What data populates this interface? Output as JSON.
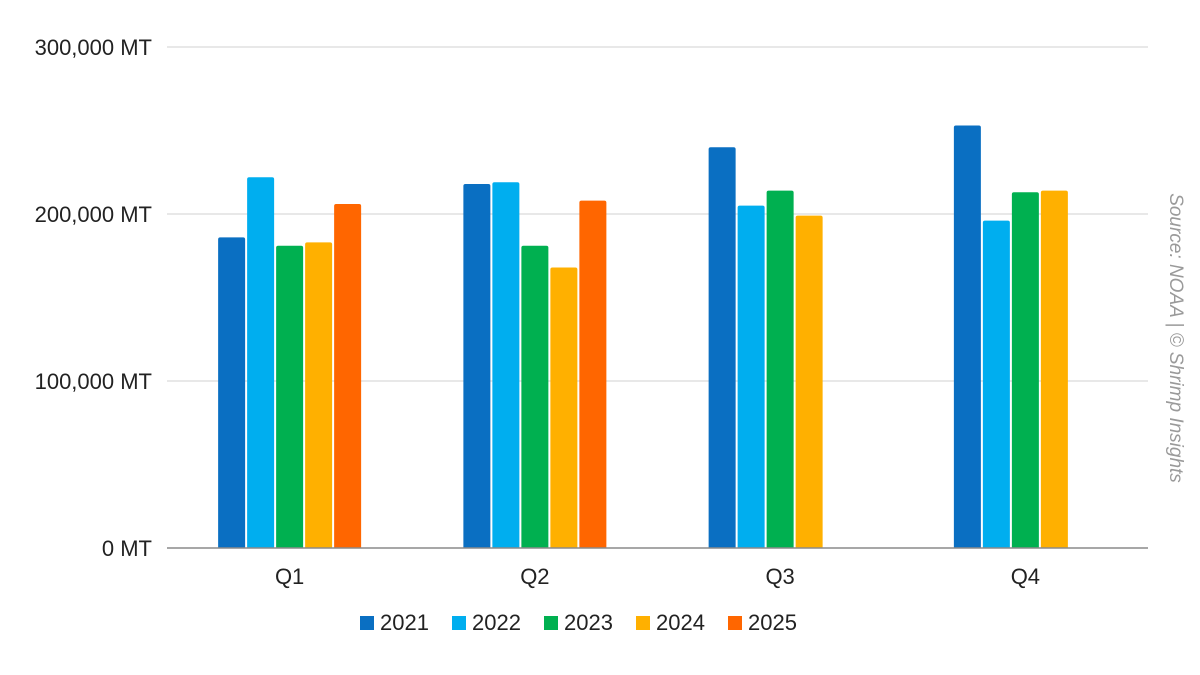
{
  "chart_data": {
    "type": "bar",
    "categories": [
      "Q1",
      "Q2",
      "Q3",
      "Q4"
    ],
    "series": [
      {
        "name": "2021",
        "color": "#0a6fc2",
        "values": [
          186000,
          218000,
          240000,
          253000
        ]
      },
      {
        "name": "2022",
        "color": "#00aeef",
        "values": [
          222000,
          219000,
          205000,
          196000
        ]
      },
      {
        "name": "2023",
        "color": "#00b050",
        "values": [
          181000,
          181000,
          214000,
          213000
        ]
      },
      {
        "name": "2024",
        "color": "#ffb000",
        "values": [
          183000,
          168000,
          199000,
          214000
        ]
      },
      {
        "name": "2025",
        "color": "#ff6600",
        "values": [
          206000,
          208000,
          null,
          null
        ]
      }
    ],
    "yticks": [
      "0 MT",
      "100,000 MT",
      "200,000 MT",
      "300,000 MT"
    ],
    "ytick_values": [
      0,
      100000,
      200000,
      300000
    ],
    "ylim": [
      0,
      300000
    ],
    "grid": true,
    "legend_position": "bottom",
    "source": "Source: NOAA | © Shrimp Insights"
  }
}
